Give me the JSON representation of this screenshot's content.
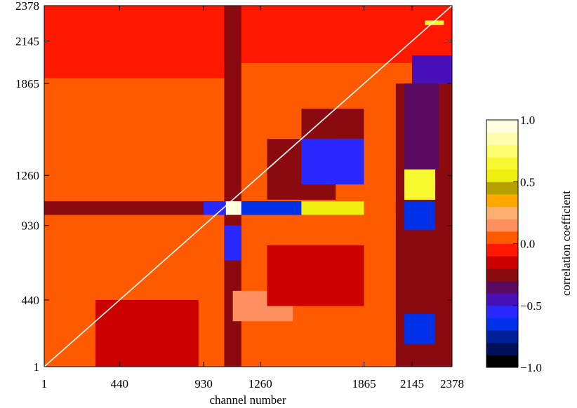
{
  "chart_data": {
    "type": "heatmap",
    "title": "",
    "xlabel": "channel number",
    "ylabel": "",
    "xlim": [
      1,
      2378
    ],
    "ylim": [
      1,
      2378
    ],
    "x_ticks": [
      1,
      440,
      930,
      1260,
      1865,
      2145,
      2378
    ],
    "y_ticks": [
      1,
      440,
      930,
      1260,
      1865,
      2145,
      2378
    ],
    "diagonal_line": {
      "from": [
        1,
        1
      ],
      "to": [
        2378,
        2378
      ],
      "color": "#ffffff"
    },
    "colorbar": {
      "label": "correlation coefficient",
      "range": [
        -1.0,
        1.0
      ],
      "ticks": [
        -1.0,
        -0.5,
        0.0,
        0.5,
        1.0
      ],
      "tick_labels": [
        "−1.0",
        "−0.5",
        "0.0",
        "0.5",
        "1.0"
      ],
      "levels": [
        {
          "from": -1.0,
          "to": -0.9,
          "color": "#000000"
        },
        {
          "from": -0.9,
          "to": -0.8,
          "color": "#00105a"
        },
        {
          "from": -0.8,
          "to": -0.7,
          "color": "#00209a"
        },
        {
          "from": -0.7,
          "to": -0.6,
          "color": "#0030e8"
        },
        {
          "from": -0.6,
          "to": -0.5,
          "color": "#2828ff"
        },
        {
          "from": -0.5,
          "to": -0.4,
          "color": "#4a10b8"
        },
        {
          "from": -0.4,
          "to": -0.3,
          "color": "#5a0a60"
        },
        {
          "from": -0.3,
          "to": -0.2,
          "color": "#8a0a10"
        },
        {
          "from": -0.2,
          "to": -0.1,
          "color": "#cc0000"
        },
        {
          "from": -0.1,
          "to": 0.0,
          "color": "#ff1800"
        },
        {
          "from": 0.0,
          "to": 0.1,
          "color": "#ff5a00"
        },
        {
          "from": 0.1,
          "to": 0.2,
          "color": "#ff9060"
        },
        {
          "from": 0.2,
          "to": 0.3,
          "color": "#ffb070"
        },
        {
          "from": 0.3,
          "to": 0.4,
          "color": "#ffa800"
        },
        {
          "from": 0.4,
          "to": 0.5,
          "color": "#b8a000"
        },
        {
          "from": 0.5,
          "to": 0.6,
          "color": "#f0f010"
        },
        {
          "from": 0.6,
          "to": 0.7,
          "color": "#f8f830"
        },
        {
          "from": 0.7,
          "to": 0.8,
          "color": "#fcfc70"
        },
        {
          "from": 0.8,
          "to": 0.9,
          "color": "#fdfdb0"
        },
        {
          "from": 0.9,
          "to": 1.0,
          "color": "#ffffe0"
        }
      ]
    },
    "regions": [
      {
        "x": [
          1,
          2378
        ],
        "y": [
          1,
          2378
        ],
        "value": 0.05
      },
      {
        "x": [
          1,
          2378
        ],
        "y": [
          2000,
          2378
        ],
        "value": -0.05
      },
      {
        "x": [
          1050,
          1150
        ],
        "y": [
          1,
          2378
        ],
        "value": -0.25
      },
      {
        "x": [
          1,
          2378
        ],
        "y": [
          1000,
          1090
        ],
        "value": -0.25
      },
      {
        "x": [
          1050,
          1150
        ],
        "y": [
          1000,
          1090
        ],
        "value": 0.95
      },
      {
        "x": [
          1060,
          1140
        ],
        "y": [
          1010,
          1080
        ],
        "value": 1.0
      },
      {
        "x": [
          930,
          1060
        ],
        "y": [
          1000,
          1090
        ],
        "value": -0.6
      },
      {
        "x": [
          1150,
          1500
        ],
        "y": [
          1000,
          1090
        ],
        "value": -0.7
      },
      {
        "x": [
          1500,
          1865
        ],
        "y": [
          1000,
          1090
        ],
        "value": 0.55
      },
      {
        "x": [
          1050,
          1150
        ],
        "y": [
          700,
          930
        ],
        "value": -0.6
      },
      {
        "x": [
          1100,
          1450
        ],
        "y": [
          300,
          500
        ],
        "value": 0.15
      },
      {
        "x": [
          1300,
          1700
        ],
        "y": [
          1100,
          1500
        ],
        "value": -0.3
      },
      {
        "x": [
          1500,
          1865
        ],
        "y": [
          1200,
          1500
        ],
        "value": -0.6
      },
      {
        "x": [
          1500,
          1865
        ],
        "y": [
          1500,
          1700
        ],
        "value": -0.3
      },
      {
        "x": [
          1865,
          2050
        ],
        "y": [
          1,
          1865
        ],
        "value": 0.05
      },
      {
        "x": [
          2050,
          2378
        ],
        "y": [
          1,
          1865
        ],
        "value": -0.25
      },
      {
        "x": [
          2100,
          2280
        ],
        "y": [
          1100,
          1300
        ],
        "value": 0.6
      },
      {
        "x": [
          2100,
          2280
        ],
        "y": [
          900,
          1090
        ],
        "value": -0.7
      },
      {
        "x": [
          2100,
          2280
        ],
        "y": [
          150,
          350
        ],
        "value": -0.7
      },
      {
        "x": [
          2100,
          2300
        ],
        "y": [
          1300,
          1865
        ],
        "value": -0.35
      },
      {
        "x": [
          2145,
          2378
        ],
        "y": [
          1865,
          2145
        ],
        "value": -0.5
      },
      {
        "x": [
          2220,
          2330
        ],
        "y": [
          2200,
          2280
        ],
        "value": 0.6
      },
      {
        "x": [
          300,
          900
        ],
        "y": [
          1,
          440
        ],
        "value": -0.2
      },
      {
        "x": [
          1300,
          1865
        ],
        "y": [
          400,
          800
        ],
        "value": -0.15
      },
      {
        "x": [
          1,
          1050
        ],
        "y": [
          1900,
          2250
        ],
        "value": -0.1
      },
      {
        "x": [
          1150,
          2378
        ],
        "y": [
          2050,
          2250
        ],
        "value": -0.1
      }
    ]
  }
}
